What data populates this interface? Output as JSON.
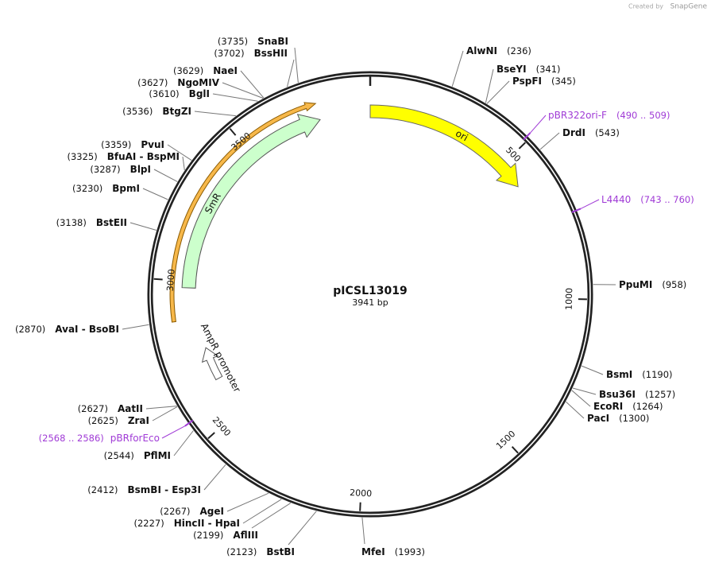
{
  "watermark": {
    "prefix": "Created by",
    "brand": "SnapGene"
  },
  "map": {
    "name": "pICSL13019",
    "length": {
      "value": 3941,
      "label": "3941 bp"
    },
    "ticks": [
      500,
      1000,
      1500,
      2000,
      2500,
      3000,
      3500
    ],
    "features": [
      "ori",
      "SmR",
      "AmpR promoter"
    ],
    "sites": [
      {
        "name": "AlwNI",
        "position": {
          "value": 236,
          "label": "(236)"
        }
      },
      {
        "name": "BseYI",
        "position": {
          "value": 341,
          "label": "(341)"
        }
      },
      {
        "name": "PspFI",
        "position": {
          "value": 345,
          "label": "(345)"
        }
      },
      {
        "name": "DrdI",
        "position": {
          "value": 543,
          "label": "(543)"
        }
      },
      {
        "name": "PpuMI",
        "position": {
          "value": 958,
          "label": "(958)"
        }
      },
      {
        "name": "BsmI",
        "position": {
          "value": 1190,
          "label": "(1190)"
        }
      },
      {
        "name": "Bsu36I",
        "position": {
          "value": 1257,
          "label": "(1257)"
        }
      },
      {
        "name": "EcoRI",
        "position": {
          "value": 1264,
          "label": "(1264)"
        }
      },
      {
        "name": "PacI",
        "position": {
          "value": 1300,
          "label": "(1300)"
        }
      },
      {
        "name": "MfeI",
        "position": {
          "value": 1993,
          "label": "(1993)"
        }
      },
      {
        "name": "BstBI",
        "position": {
          "value": 2123,
          "label": "(2123)"
        }
      },
      {
        "name": "AflIII",
        "position": {
          "value": 2199,
          "label": "(2199)"
        }
      },
      {
        "name": "HincII - HpaI",
        "position": {
          "value": 2227,
          "label": "(2227)"
        }
      },
      {
        "name": "AgeI",
        "position": {
          "value": 2267,
          "label": "(2267)"
        }
      },
      {
        "name": "BsmBI - Esp3I",
        "position": {
          "value": 2412,
          "label": "(2412)"
        }
      },
      {
        "name": "PflMI",
        "position": {
          "value": 2544,
          "label": "(2544)"
        }
      },
      {
        "name": "ZraI",
        "position": {
          "value": 2625,
          "label": "(2625)"
        }
      },
      {
        "name": "AatII",
        "position": {
          "value": 2627,
          "label": "(2627)"
        }
      },
      {
        "name": "AvaI - BsoBI",
        "position": {
          "value": 2870,
          "label": "(2870)"
        }
      },
      {
        "name": "BstEII",
        "position": {
          "value": 3138,
          "label": "(3138)"
        }
      },
      {
        "name": "BpmI",
        "position": {
          "value": 3230,
          "label": "(3230)"
        }
      },
      {
        "name": "BlpI",
        "position": {
          "value": 3287,
          "label": "(3287)"
        }
      },
      {
        "name": "BfuAI - BspMI",
        "position": {
          "value": 3325,
          "label": "(3325)"
        }
      },
      {
        "name": "PvuI",
        "position": {
          "value": 3359,
          "label": "(3359)"
        }
      },
      {
        "name": "BtgZI",
        "position": {
          "value": 3536,
          "label": "(3536)"
        }
      },
      {
        "name": "BglI",
        "position": {
          "value": 3610,
          "label": "(3610)"
        }
      },
      {
        "name": "NgoMIV",
        "position": {
          "value": 3627,
          "label": "(3627)"
        }
      },
      {
        "name": "NaeI",
        "position": {
          "value": 3629,
          "label": "(3629)"
        }
      },
      {
        "name": "BssHII",
        "position": {
          "value": 3702,
          "label": "(3702)"
        }
      },
      {
        "name": "SnaBI",
        "position": {
          "value": 3735,
          "label": "(3735)"
        }
      }
    ],
    "primers": [
      {
        "name": "pBR322ori-F",
        "range": "(490 .. 509)"
      },
      {
        "name": "L4440",
        "range": "(743 .. 760)"
      },
      {
        "name": "pBRforEco",
        "range": "(2568 .. 2586)"
      }
    ]
  }
}
